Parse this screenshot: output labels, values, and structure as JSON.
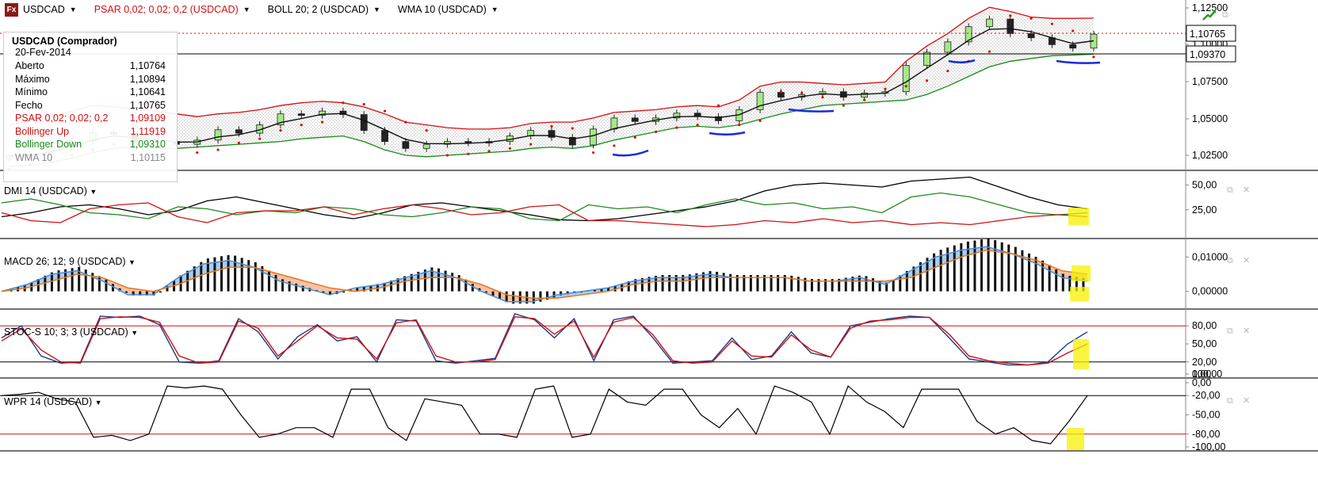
{
  "symbol": "USDCAD",
  "header": {
    "items": [
      {
        "label": "PSAR 0,02; 0,02; 0,2 (USDCAD)",
        "color": "#d01010"
      },
      {
        "label": "BOLL 20; 2 (USDCAD)",
        "color": "#000000"
      },
      {
        "label": "WMA 10 (USDCAD)",
        "color": "#000000"
      }
    ]
  },
  "info": {
    "title": "USDCAD (Comprador)",
    "date": "20-Fev-2014",
    "rows": [
      {
        "label": "Aberto",
        "value": "1,10764",
        "color": "#000000"
      },
      {
        "label": "Máximo",
        "value": "1,10894",
        "color": "#000000"
      },
      {
        "label": "Mínimo",
        "value": "1,10641",
        "color": "#000000"
      },
      {
        "label": "Fecho",
        "value": "1,10765",
        "color": "#000000"
      },
      {
        "label": "PSAR 0,02; 0,02; 0,2",
        "value": "1,09109",
        "color": "#d01010"
      },
      {
        "label": "Bollinger Up",
        "value": "1,11919",
        "color": "#d01010"
      },
      {
        "label": "Bollinger Down",
        "value": "1,09310",
        "color": "#1a8a1a"
      },
      {
        "label": "WMA 10",
        "value": "1,10115",
        "color": "#888888"
      }
    ]
  },
  "panels": {
    "main": {
      "ticks": [
        "1,12500",
        "1,10000",
        "1,07500",
        "1,05000",
        "1,02500"
      ],
      "price_labels": [
        "1,10765",
        "1,09370"
      ]
    },
    "dmi": {
      "title": "DMI 14 (USDCAD)",
      "ticks": [
        "50,00",
        "25,00"
      ]
    },
    "macd": {
      "title": "MACD 26; 12; 9 (USDCAD)",
      "ticks": [
        "0,01000",
        "0,00000"
      ]
    },
    "stoch": {
      "title": "STOC-S 10; 3; 3 (USDCAD)",
      "ticks": [
        "100,00",
        "80,00",
        "50,00",
        "20,00",
        "0,00"
      ]
    },
    "wpr": {
      "title": "WPR 14 (USDCAD)",
      "ticks": [
        "0,00",
        "-20,00",
        "-50,00",
        "-80,00",
        "-100,00"
      ]
    }
  },
  "chart_data": [
    {
      "type": "line",
      "title": "USDCAD",
      "series": [
        {
          "name": "Close",
          "color": "#222222",
          "values": [
            1.0195,
            1.0205,
            1.0265,
            1.0305,
            1.0365,
            1.036,
            1.029,
            1.03,
            1.028,
            1.031,
            1.0385,
            1.036,
            1.042,
            1.05,
            1.049,
            1.052,
            1.0495,
            1.038,
            1.03,
            1.025,
            1.028,
            1.03,
            1.029,
            1.03,
            1.034,
            1.038,
            1.033,
            1.0275,
            1.039,
            1.047,
            1.0445,
            1.047,
            1.0505,
            1.048,
            1.045,
            1.053,
            1.0655,
            1.062,
            1.064,
            1.066,
            1.062,
            1.065,
            1.066,
            1.085,
            1.0945,
            1.102,
            1.113,
            1.1185,
            1.108,
            1.105,
            1.1,
            1.0975,
            1.1076
          ]
        },
        {
          "name": "PSAR 0,02; 0,02; 0,2",
          "color": "#d01010",
          "values": [
            1.01,
            1.013,
            1.016,
            1.02,
            1.024,
            1.028,
            1.042,
            1.04,
            1.038,
            1.022,
            1.024,
            1.029,
            1.032,
            1.038,
            1.042,
            1.044,
            1.058,
            1.057,
            1.052,
            1.044,
            1.038,
            1.02,
            1.021,
            1.023,
            1.025,
            1.028,
            1.041,
            1.0395,
            1.022,
            1.027,
            1.033,
            1.037,
            1.04,
            1.042,
            1.056,
            1.042,
            1.045,
            1.066,
            1.065,
            1.062,
            1.056,
            1.06,
            1.068,
            1.07,
            1.074,
            1.081,
            1.088,
            1.095,
            1.121,
            1.119,
            1.115,
            1.11,
            1.0911
          ]
        },
        {
          "name": "Bollinger Up",
          "color": "#d01010",
          "values": [
            1.042,
            1.045,
            1.048,
            1.052,
            1.056,
            1.055,
            1.053,
            1.052,
            1.05,
            1.048,
            1.05,
            1.051,
            1.053,
            1.056,
            1.058,
            1.059,
            1.058,
            1.055,
            1.05,
            1.044,
            1.042,
            1.04,
            1.039,
            1.039,
            1.04,
            1.043,
            1.044,
            1.044,
            1.047,
            1.051,
            1.052,
            1.053,
            1.055,
            1.056,
            1.055,
            1.06,
            1.07,
            1.073,
            1.073,
            1.072,
            1.071,
            1.072,
            1.073,
            1.088,
            1.099,
            1.108,
            1.119,
            1.127,
            1.124,
            1.12,
            1.119,
            1.119,
            1.1192
          ]
        },
        {
          "name": "Bollinger Down",
          "color": "#1a8a1a",
          "values": [
            1.012,
            1.013,
            1.015,
            1.018,
            1.022,
            1.025,
            1.026,
            1.025,
            1.025,
            1.026,
            1.027,
            1.028,
            1.029,
            1.03,
            1.032,
            1.033,
            1.034,
            1.03,
            1.024,
            1.02,
            1.019,
            1.02,
            1.021,
            1.022,
            1.023,
            1.025,
            1.026,
            1.025,
            1.027,
            1.031,
            1.034,
            1.037,
            1.04,
            1.041,
            1.04,
            1.042,
            1.046,
            1.05,
            1.053,
            1.056,
            1.057,
            1.058,
            1.059,
            1.06,
            1.064,
            1.07,
            1.077,
            1.084,
            1.088,
            1.09,
            1.092,
            1.0925,
            1.0931
          ]
        }
      ]
    },
    {
      "type": "line",
      "title": "DMI 14 (USDCAD)",
      "ylim": [
        0,
        60
      ],
      "series": [
        {
          "name": "ADX",
          "color": "#000000",
          "values": [
            18,
            22,
            28,
            30,
            26,
            20,
            24,
            34,
            38,
            32,
            26,
            20,
            16,
            22,
            30,
            32,
            28,
            24,
            20,
            15,
            14,
            16,
            20,
            24,
            28,
            34,
            44,
            50,
            52,
            50,
            48,
            54,
            56,
            58,
            48,
            38,
            30,
            26
          ]
        },
        {
          "name": "+DI",
          "color": "#1a8a1a",
          "values": [
            32,
            36,
            30,
            22,
            20,
            16,
            28,
            26,
            20,
            24,
            22,
            28,
            26,
            20,
            18,
            22,
            28,
            26,
            16,
            14,
            30,
            26,
            28,
            22,
            30,
            36,
            30,
            32,
            26,
            28,
            22,
            38,
            42,
            38,
            30,
            22,
            20,
            22
          ]
        },
        {
          "name": "-DI",
          "color": "#d01010",
          "values": [
            22,
            14,
            12,
            26,
            30,
            32,
            18,
            12,
            22,
            24,
            24,
            28,
            20,
            26,
            30,
            26,
            20,
            22,
            28,
            30,
            14,
            14,
            12,
            10,
            8,
            10,
            14,
            12,
            16,
            12,
            14,
            10,
            12,
            10,
            14,
            18,
            20,
            18
          ]
        }
      ]
    },
    {
      "type": "line",
      "title": "MACD 26; 12; 9 (USDCAD)",
      "series": [
        {
          "name": "MACD",
          "color": "#4a8ed8",
          "values": [
            0.0,
            0.002,
            0.005,
            0.006,
            0.003,
            -0.001,
            -0.001,
            0.004,
            0.008,
            0.009,
            0.007,
            0.003,
            0.001,
            -0.001,
            0.001,
            0.002,
            0.004,
            0.006,
            0.004,
            0.0,
            -0.003,
            -0.003,
            -0.001,
            0.0,
            0.001,
            0.003,
            0.004,
            0.004,
            0.005,
            0.004,
            0.004,
            0.004,
            0.003,
            0.003,
            0.004,
            0.002,
            0.006,
            0.01,
            0.012,
            0.013,
            0.011,
            0.008,
            0.004,
            0.003
          ]
        },
        {
          "name": "Signal",
          "color": "#e8761a",
          "values": [
            0.0,
            0.001,
            0.003,
            0.005,
            0.004,
            0.001,
            0.0,
            0.002,
            0.005,
            0.007,
            0.007,
            0.005,
            0.003,
            0.001,
            0.0,
            0.001,
            0.003,
            0.004,
            0.004,
            0.002,
            -0.001,
            -0.002,
            -0.002,
            -0.001,
            0.0,
            0.002,
            0.003,
            0.003,
            0.004,
            0.004,
            0.004,
            0.004,
            0.003,
            0.003,
            0.003,
            0.003,
            0.004,
            0.007,
            0.01,
            0.012,
            0.011,
            0.009,
            0.006,
            0.005
          ]
        }
      ]
    },
    {
      "type": "line",
      "title": "STOC-S 10; 3; 3 (USDCAD)",
      "ylim": [
        0,
        100
      ],
      "series": [
        {
          "name": "%K",
          "color": "#1a3a8a",
          "values": [
            60,
            80,
            30,
            18,
            20,
            96,
            94,
            96,
            82,
            20,
            18,
            22,
            92,
            70,
            25,
            62,
            82,
            55,
            62,
            20,
            90,
            88,
            22,
            18,
            22,
            26,
            100,
            90,
            60,
            92,
            22,
            90,
            96,
            60,
            18,
            20,
            22,
            60,
            24,
            30,
            70,
            35,
            28,
            80,
            86,
            92,
            96,
            94,
            60,
            25,
            20,
            15,
            15,
            20,
            50,
            70
          ]
        },
        {
          "name": "%D",
          "color": "#d01010",
          "values": [
            55,
            75,
            40,
            20,
            18,
            92,
            95,
            94,
            86,
            30,
            18,
            20,
            88,
            76,
            30,
            55,
            80,
            60,
            58,
            25,
            85,
            90,
            30,
            20,
            20,
            24,
            95,
            92,
            66,
            88,
            28,
            86,
            94,
            65,
            22,
            18,
            20,
            55,
            30,
            28,
            65,
            40,
            28,
            76,
            88,
            90,
            94,
            94,
            66,
            30,
            22,
            18,
            15,
            18,
            35,
            50
          ]
        }
      ]
    },
    {
      "type": "line",
      "title": "WPR 14 (USDCAD)",
      "ylim": [
        -100,
        0
      ],
      "series": [
        {
          "name": "WPR",
          "color": "#000000",
          "values": [
            -20,
            -18,
            -15,
            -25,
            -30,
            -85,
            -82,
            -90,
            -80,
            -5,
            -8,
            -5,
            -10,
            -50,
            -85,
            -80,
            -70,
            -70,
            -85,
            -10,
            -10,
            -70,
            -90,
            -25,
            -30,
            -35,
            -80,
            -80,
            -85,
            -10,
            -5,
            -85,
            -80,
            -10,
            -30,
            -35,
            -10,
            -10,
            -50,
            -70,
            -40,
            -80,
            -5,
            -15,
            -30,
            -80,
            -5,
            -30,
            -45,
            -70,
            -10,
            -10,
            -10,
            -60,
            -80,
            -70,
            -90,
            -95,
            -60,
            -20
          ]
        }
      ]
    }
  ]
}
